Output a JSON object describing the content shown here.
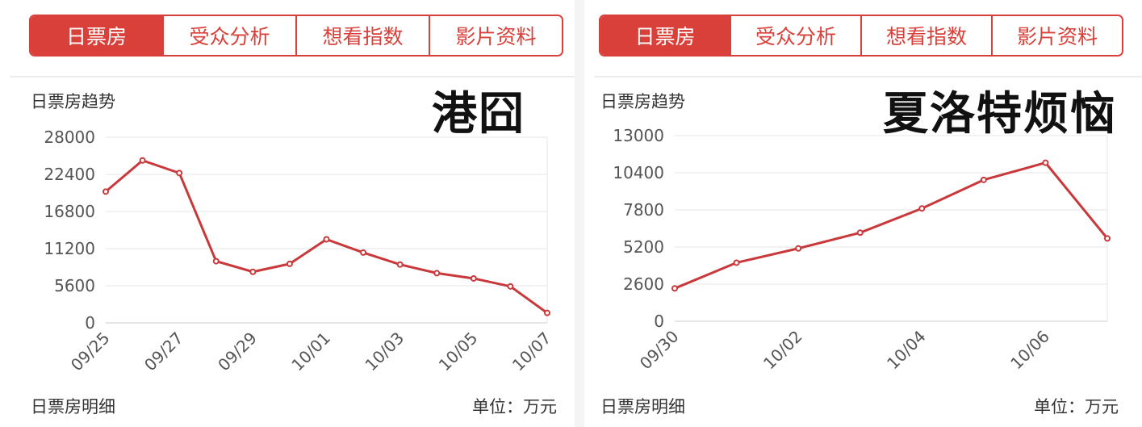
{
  "tabs": [
    "日票房",
    "受众分析",
    "想看指数",
    "影片资料"
  ],
  "section_title": "日票房趋势",
  "footer_left": "日票房明细",
  "footer_right": "单位：万元",
  "accent_color": "#d9403a",
  "left_overlay": "港囧",
  "right_overlay": "夏洛特烦恼",
  "chart_data": [
    {
      "type": "line",
      "title": "港囧",
      "x": [
        "09/25",
        "09/26",
        "09/27",
        "09/28",
        "09/29",
        "09/30",
        "10/01",
        "10/02",
        "10/03",
        "10/04",
        "10/05",
        "10/06",
        "10/07"
      ],
      "x_tick_labels": [
        "09/25",
        "09/27",
        "09/29",
        "10/01",
        "10/03",
        "10/05",
        "10/07"
      ],
      "y_ticks": [
        0,
        5600,
        11200,
        16800,
        22400,
        28000
      ],
      "ylim": [
        0,
        28000
      ],
      "values": [
        19800,
        24500,
        22600,
        9300,
        7700,
        8900,
        12600,
        10600,
        8800,
        7500,
        6700,
        5500,
        1500
      ],
      "grid": true
    },
    {
      "type": "line",
      "title": "夏洛特烦恼",
      "x": [
        "09/30",
        "10/01",
        "10/02",
        "10/03",
        "10/04",
        "10/05",
        "10/06",
        "10/07"
      ],
      "x_tick_labels": [
        "09/30",
        "10/02",
        "10/04",
        "10/06"
      ],
      "y_ticks": [
        0,
        2600,
        5200,
        7800,
        10400,
        13000
      ],
      "ylim": [
        0,
        13000
      ],
      "values": [
        2300,
        4100,
        5100,
        6200,
        7900,
        9900,
        11100,
        5800
      ],
      "grid": true
    }
  ]
}
